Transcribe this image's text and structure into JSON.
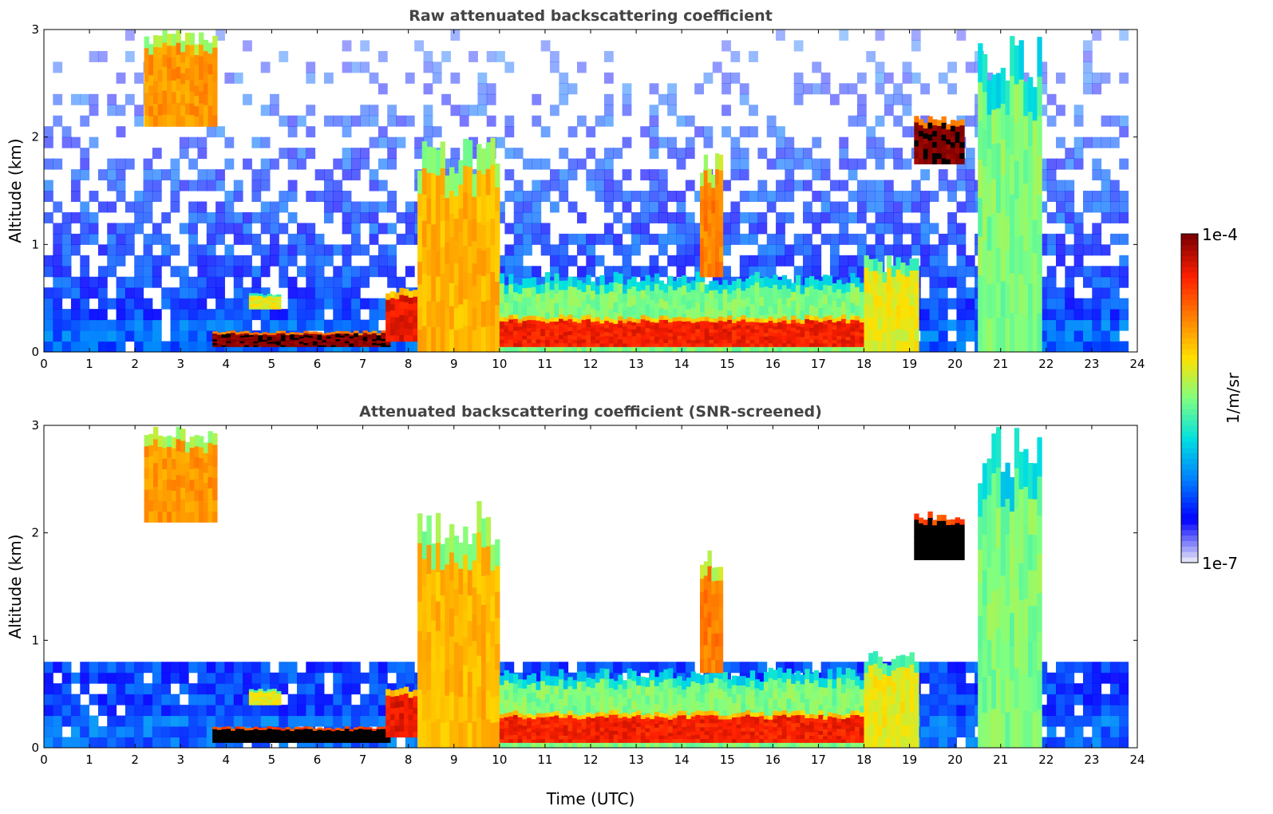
{
  "chart_data": [
    {
      "type": "heatmap",
      "title": "Raw attenuated backscattering coefficient",
      "xlabel": "",
      "ylabel": "Altitude (km)",
      "xlim": [
        0,
        24
      ],
      "ylim": [
        0,
        3
      ],
      "xticks": [
        0,
        1,
        2,
        3,
        4,
        5,
        6,
        7,
        8,
        9,
        10,
        11,
        12,
        13,
        14,
        15,
        16,
        17,
        18,
        19,
        20,
        21,
        22,
        23,
        24
      ],
      "yticks": [
        0,
        1,
        2,
        3
      ],
      "grid": false,
      "colorscale": "jet",
      "x_unit": "Time (UTC)",
      "y_unit": "km",
      "background_noise_top_km": 3,
      "features": [
        {
          "t_start": 2.2,
          "t_end": 3.8,
          "alt_bottom": 2.1,
          "alt_top": 3.0,
          "level": 0.72
        },
        {
          "t_start": 3.7,
          "t_end": 7.6,
          "alt_bottom": 0.05,
          "alt_top": 0.2,
          "level": 1.0
        },
        {
          "t_start": 4.5,
          "t_end": 5.2,
          "alt_bottom": 0.4,
          "alt_top": 0.55,
          "level": 0.6
        },
        {
          "t_start": 7.5,
          "t_end": 8.2,
          "alt_bottom": 0.1,
          "alt_top": 0.6,
          "level": 0.9
        },
        {
          "t_start": 8.2,
          "t_end": 10.0,
          "alt_bottom": 0.0,
          "alt_top": 2.0,
          "level": 0.68
        },
        {
          "t_start": 10.0,
          "t_end": 18.5,
          "alt_bottom": 0.0,
          "alt_top": 0.75,
          "level": 0.5
        },
        {
          "t_start": 10.0,
          "t_end": 18.5,
          "alt_bottom": 0.05,
          "alt_top": 0.35,
          "level": 0.88
        },
        {
          "t_start": 14.4,
          "t_end": 14.9,
          "alt_bottom": 0.7,
          "alt_top": 1.85,
          "level": 0.75
        },
        {
          "t_start": 18.0,
          "t_end": 19.2,
          "alt_bottom": 0.0,
          "alt_top": 0.9,
          "level": 0.6
        },
        {
          "t_start": 19.1,
          "t_end": 20.2,
          "alt_bottom": 1.75,
          "alt_top": 2.2,
          "level": 1.0
        },
        {
          "t_start": 20.5,
          "t_end": 21.9,
          "alt_bottom": 0.0,
          "alt_top": 3.0,
          "level": 0.5
        }
      ]
    },
    {
      "type": "heatmap",
      "title": "Attenuated backscattering coefficient (SNR-screened)",
      "xlabel": "Time (UTC)",
      "ylabel": "Altitude (km)",
      "xlim": [
        0,
        24
      ],
      "ylim": [
        0,
        3
      ],
      "xticks": [
        0,
        1,
        2,
        3,
        4,
        5,
        6,
        7,
        8,
        9,
        10,
        11,
        12,
        13,
        14,
        15,
        16,
        17,
        18,
        19,
        20,
        21,
        22,
        23,
        24
      ],
      "yticks": [
        0,
        1,
        2,
        3
      ],
      "grid": false,
      "colorscale": "jet",
      "x_unit": "Time (UTC)",
      "y_unit": "km",
      "background_noise_top_km": 0.8,
      "features": [
        {
          "t_start": 2.2,
          "t_end": 3.8,
          "alt_bottom": 2.1,
          "alt_top": 3.0,
          "level": 0.72
        },
        {
          "t_start": 3.7,
          "t_end": 7.6,
          "alt_bottom": 0.05,
          "alt_top": 0.2,
          "level": 1.1
        },
        {
          "t_start": 4.5,
          "t_end": 5.2,
          "alt_bottom": 0.4,
          "alt_top": 0.55,
          "level": 0.6
        },
        {
          "t_start": 7.5,
          "t_end": 8.2,
          "alt_bottom": 0.1,
          "alt_top": 0.6,
          "level": 0.9
        },
        {
          "t_start": 8.2,
          "t_end": 10.0,
          "alt_bottom": 0.0,
          "alt_top": 2.3,
          "level": 0.68
        },
        {
          "t_start": 10.0,
          "t_end": 18.5,
          "alt_bottom": 0.0,
          "alt_top": 0.75,
          "level": 0.5
        },
        {
          "t_start": 10.0,
          "t_end": 18.5,
          "alt_bottom": 0.05,
          "alt_top": 0.35,
          "level": 0.88
        },
        {
          "t_start": 14.4,
          "t_end": 14.9,
          "alt_bottom": 0.7,
          "alt_top": 1.85,
          "level": 0.75
        },
        {
          "t_start": 18.0,
          "t_end": 19.2,
          "alt_bottom": 0.0,
          "alt_top": 0.9,
          "level": 0.6
        },
        {
          "t_start": 19.1,
          "t_end": 20.2,
          "alt_bottom": 1.75,
          "alt_top": 2.2,
          "level": 1.1
        },
        {
          "t_start": 20.5,
          "t_end": 21.9,
          "alt_bottom": 0.0,
          "alt_top": 3.0,
          "level": 0.5
        }
      ]
    }
  ],
  "colorbar": {
    "max_label": "1e-4",
    "min_label": "1e-7",
    "unit_label": "1/m/sr",
    "colors": [
      "#e0e0f8",
      "#0000ff",
      "#0080ff",
      "#00e0e0",
      "#80ff80",
      "#ffe000",
      "#ff8000",
      "#ff2000",
      "#800000"
    ]
  }
}
